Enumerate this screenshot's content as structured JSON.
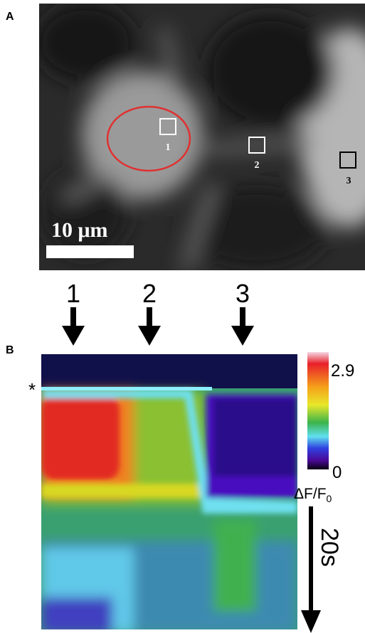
{
  "panel_a": {
    "label": "A",
    "roi_labels": [
      "1",
      "2",
      "3"
    ],
    "scale_bar": "10 μm"
  },
  "panel_b": {
    "label": "B",
    "arrow_labels": [
      "1",
      "2",
      "3"
    ],
    "marker": "*",
    "colorbar": {
      "max": "2.9",
      "min": "0",
      "label": "ΔF/F",
      "label_sub": "0"
    },
    "time_scale": "20s"
  }
}
